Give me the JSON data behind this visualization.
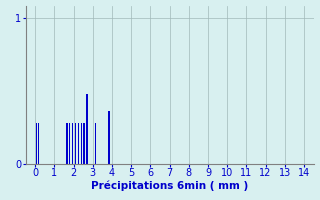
{
  "title": "",
  "xlabel": "Précipitations 6min ( mm )",
  "ylabel": "",
  "xlim": [
    -0.5,
    14.5
  ],
  "ylim": [
    0,
    1.08
  ],
  "yticks": [
    0,
    1
  ],
  "xticks": [
    0,
    1,
    2,
    3,
    4,
    5,
    6,
    7,
    8,
    9,
    10,
    11,
    12,
    13,
    14
  ],
  "bar_positions": [
    0.08,
    0.18,
    1.65,
    1.8,
    1.95,
    2.1,
    2.25,
    2.4,
    2.55,
    2.7,
    3.15,
    3.85
  ],
  "bar_heights": [
    0.28,
    0.28,
    0.28,
    0.28,
    0.28,
    0.28,
    0.28,
    0.28,
    0.28,
    0.48,
    0.28,
    0.36
  ],
  "bar_width": 0.07,
  "bar_color": "#0000cc",
  "bg_color": "#d8f0f0",
  "grid_color": "#a0b8b8",
  "axis_color": "#808080",
  "tick_label_color": "#0000cc",
  "xlabel_color": "#0000cc",
  "xlabel_fontsize": 7.5,
  "tick_fontsize": 7
}
